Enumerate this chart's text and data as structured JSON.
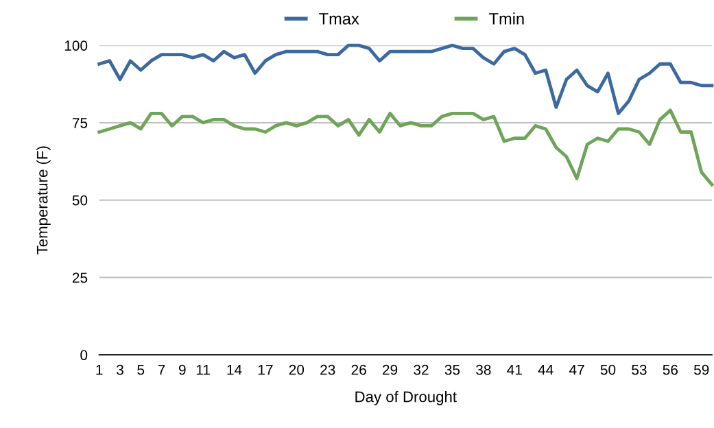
{
  "chart_data": {
    "type": "line",
    "xlabel": "Day of Drought",
    "ylabel": "Temperature (F)",
    "categories": [
      "1",
      null,
      "3",
      null,
      "5",
      null,
      "7",
      null,
      "9",
      null,
      "11",
      null,
      null,
      "14",
      null,
      null,
      "17",
      null,
      null,
      "20",
      null,
      null,
      "23",
      null,
      null,
      "26",
      null,
      null,
      "29",
      null,
      null,
      "32",
      null,
      null,
      "35",
      null,
      null,
      "38",
      null,
      null,
      "41",
      null,
      null,
      "44",
      null,
      null,
      "47",
      null,
      null,
      "50",
      null,
      null,
      "53",
      null,
      null,
      "56",
      null,
      null,
      "59",
      null
    ],
    "series": [
      {
        "name": "Tmax",
        "color": "#3c6a9e",
        "values": [
          94,
          95,
          89,
          95,
          92,
          95,
          97,
          97,
          97,
          96,
          97,
          95,
          98,
          96,
          97,
          91,
          95,
          97,
          98,
          98,
          98,
          98,
          97,
          97,
          100,
          100,
          99,
          95,
          98,
          98,
          98,
          98,
          98,
          99,
          100,
          99,
          99,
          96,
          94,
          98,
          99,
          97,
          91,
          92,
          80,
          89,
          92,
          87,
          85,
          91,
          78,
          82,
          89,
          91,
          94,
          94,
          88,
          88,
          87,
          87
        ]
      },
      {
        "name": "Tmin",
        "color": "#6fa55a",
        "values": [
          72,
          73,
          74,
          75,
          73,
          78,
          78,
          74,
          77,
          77,
          75,
          76,
          76,
          74,
          73,
          73,
          72,
          74,
          75,
          74,
          75,
          77,
          77,
          74,
          76,
          71,
          76,
          72,
          78,
          74,
          75,
          74,
          74,
          77,
          78,
          78,
          78,
          76,
          77,
          69,
          70,
          70,
          74,
          73,
          67,
          64,
          57,
          68,
          70,
          69,
          73,
          73,
          72,
          68,
          76,
          79,
          72,
          72,
          59,
          55
        ]
      }
    ],
    "ylim": [
      0,
      100
    ],
    "yticks": [
      0,
      25,
      50,
      75,
      100
    ],
    "grid": "y",
    "legend": "top",
    "marker": "none",
    "line_style": "solid"
  }
}
